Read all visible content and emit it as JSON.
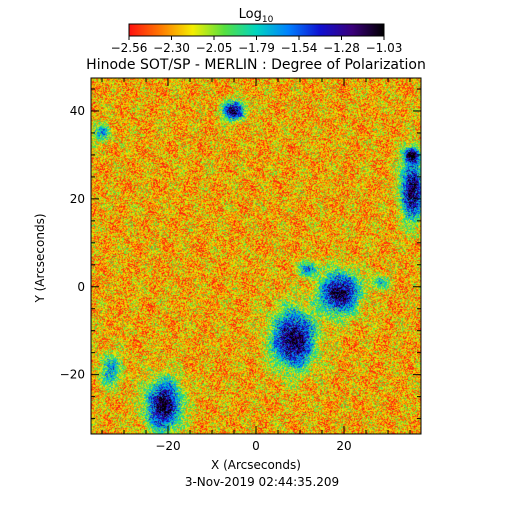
{
  "chart_data": {
    "type": "heatmap",
    "title": "Hinode SOT/SP - MERLIN : Degree of Polarization",
    "colorbar": {
      "label": "Log",
      "label_subscript": "10",
      "ticks": [
        "−2.56",
        "−2.30",
        "−2.05",
        "−1.79",
        "−1.54",
        "−1.28",
        "−1.03"
      ],
      "range": [
        -2.56,
        -1.03
      ],
      "colormap": [
        "#ff1010",
        "#ff7a00",
        "#f4ee00",
        "#55e040",
        "#00d4c0",
        "#0080ff",
        "#1010d0",
        "#3a007a",
        "#000000"
      ]
    },
    "xlabel": "X (Arcseconds)",
    "ylabel": "Y (Arcseconds)",
    "xlim": [
      -37.5,
      37.5
    ],
    "ylim": [
      -33.5,
      47.5
    ],
    "xticks": [
      {
        "value": -20,
        "label": "−20"
      },
      {
        "value": 0,
        "label": "0"
      },
      {
        "value": 20,
        "label": "20"
      }
    ],
    "yticks": [
      {
        "value": -20,
        "label": "−20"
      },
      {
        "value": 0,
        "label": "0"
      },
      {
        "value": 20,
        "label": "20"
      },
      {
        "value": 40,
        "label": "40"
      }
    ],
    "background_level": -2.27,
    "features": [
      {
        "x": 8.5,
        "y": -12.0,
        "rx": 5.5,
        "ry": 7.5,
        "peak": -1.05
      },
      {
        "x": 19.0,
        "y": -1.5,
        "rx": 5.0,
        "ry": 5.5,
        "peak": -1.08
      },
      {
        "x": -21.0,
        "y": -27.0,
        "rx": 4.5,
        "ry": 6.5,
        "peak": -1.03
      },
      {
        "x": -5.0,
        "y": 40.0,
        "rx": 3.0,
        "ry": 2.5,
        "peak": -1.15
      },
      {
        "x": 35.5,
        "y": 22.0,
        "rx": 3.0,
        "ry": 8.0,
        "peak": -1.1
      },
      {
        "x": 35.5,
        "y": 30.0,
        "rx": 2.0,
        "ry": 2.0,
        "peak": -1.2
      },
      {
        "x": -33.0,
        "y": -19.0,
        "rx": 3.0,
        "ry": 4.5,
        "peak": -1.7
      },
      {
        "x": -35.0,
        "y": 35.0,
        "rx": 2.5,
        "ry": 2.5,
        "peak": -1.75
      },
      {
        "x": 12.0,
        "y": 4.0,
        "rx": 2.5,
        "ry": 2.0,
        "peak": -1.6
      },
      {
        "x": 28.0,
        "y": 1.0,
        "rx": 2.5,
        "ry": 2.0,
        "peak": -1.8
      }
    ],
    "timestamp": "3-Nov-2019 02:44:35.209"
  }
}
